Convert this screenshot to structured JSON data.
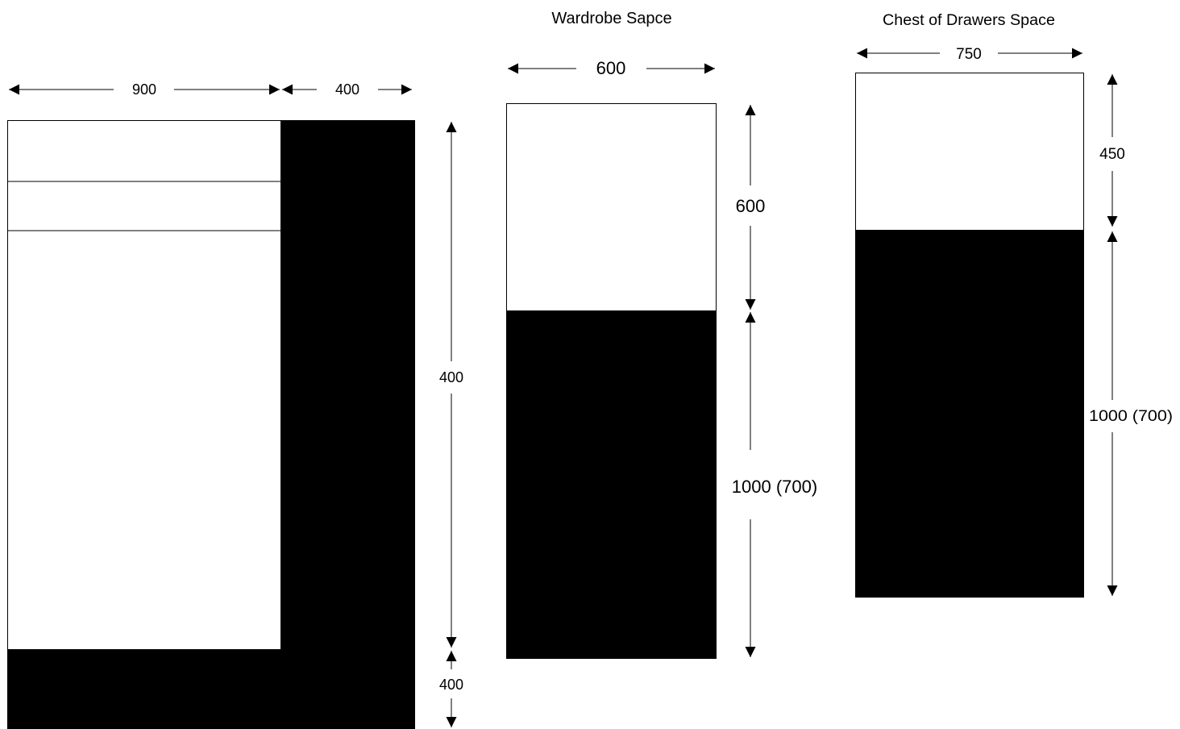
{
  "bed": {
    "width_label": "900",
    "side_width_label": "400",
    "height_label": "400",
    "bottom_label": "400"
  },
  "wardrobe": {
    "title": "Wardrobe Sapce",
    "width_label": "600",
    "top_height_label": "600",
    "bottom_height_label": "1000 (700)"
  },
  "chest": {
    "title": "Chest of Drawers Space",
    "width_label": "750",
    "top_height_label": "450",
    "bottom_height_label": "1000 (700)"
  },
  "colors": {
    "fill": "#000000",
    "background": "#ffffff",
    "stroke": "#000000"
  }
}
